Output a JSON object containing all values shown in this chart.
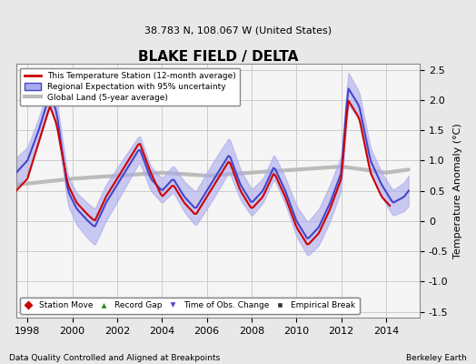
{
  "title": "BLAKE FIELD / DELTA",
  "subtitle": "38.783 N, 108.067 W (United States)",
  "ylabel": "Temperature Anomaly (°C)",
  "footer_left": "Data Quality Controlled and Aligned at Breakpoints",
  "footer_right": "Berkeley Earth",
  "xlim": [
    1997.5,
    2015.5
  ],
  "ylim": [
    -1.6,
    2.6
  ],
  "yticks": [
    -1.5,
    -1.0,
    -0.5,
    0.0,
    0.5,
    1.0,
    1.5,
    2.0,
    2.5
  ],
  "xticks": [
    1998,
    2000,
    2002,
    2004,
    2006,
    2008,
    2010,
    2012,
    2014
  ],
  "bg_color": "#e8e8e8",
  "plot_bg_color": "#f5f5f5",
  "regional_color": "#4444cc",
  "regional_fill_color": "#aaaaee",
  "station_color": "#cc0000",
  "global_color": "#bbbbbb",
  "legend_items": [
    {
      "label": "This Temperature Station (12-month average)",
      "color": "#cc0000",
      "lw": 2
    },
    {
      "label": "Regional Expectation with 95% uncertainty",
      "color": "#4444cc",
      "lw": 2
    },
    {
      "label": "Global Land (5-year average)",
      "color": "#bbbbbb",
      "lw": 3
    }
  ],
  "marker_legend": [
    {
      "label": "Station Move",
      "color": "#cc0000",
      "marker": "D"
    },
    {
      "label": "Record Gap",
      "color": "#228822",
      "marker": "^"
    },
    {
      "label": "Time of Obs. Change",
      "color": "#4444cc",
      "marker": "v"
    },
    {
      "label": "Empirical Break",
      "color": "#333333",
      "marker": "s"
    }
  ]
}
